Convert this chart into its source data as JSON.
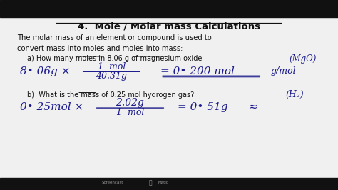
{
  "bg_color": "#f0f0f0",
  "title": "4.  Mole / Molar mass Calculations",
  "intro_line1": "The molar mass of an element or compound is used to",
  "intro_line2": "convert mass into moles and moles into mass:",
  "part_a_label": "a) How many moles in 8.06 g of magnesium oxide",
  "part_a_formula_label": "(MgO)",
  "part_a_numerator": "1  mol",
  "part_a_denominator": "40.31g",
  "part_b_label": "b)  What is the mass of 0.25 mol hydrogen gas?",
  "part_b_formula_label": "(H₂)",
  "part_b_numerator": "2.02g",
  "part_b_denominator": "1  mol",
  "text_color": "#1a1a8c",
  "black_color": "#111111"
}
